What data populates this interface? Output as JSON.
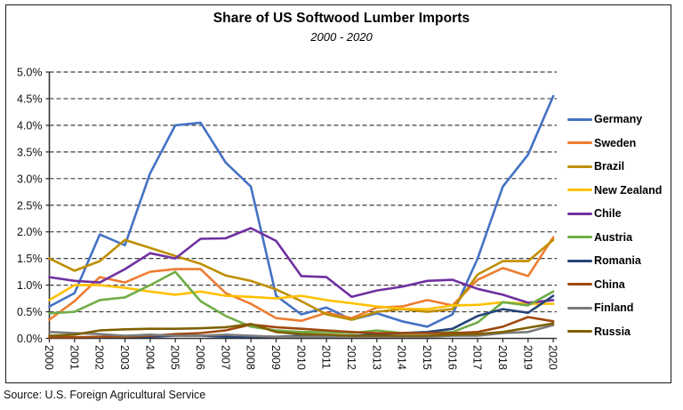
{
  "source": "Source: U.S. Foreign Agricultural Service",
  "chart_data": {
    "type": "line",
    "title": "Share of US Softwood Lumber Imports",
    "subtitle": "2000 - 2020",
    "xlabel": "",
    "ylabel": "",
    "x": [
      2000,
      2001,
      2002,
      2003,
      2004,
      2005,
      2006,
      2007,
      2008,
      2009,
      2010,
      2011,
      2012,
      2013,
      2014,
      2015,
      2016,
      2017,
      2018,
      2019,
      2020
    ],
    "ylim": [
      0,
      5
    ],
    "ytick_step": 0.5,
    "y_tick_labels": [
      "0.0%",
      "0.5%",
      "1.0%",
      "1.5%",
      "2.0%",
      "2.5%",
      "3.0%",
      "3.5%",
      "4.0%",
      "4.5%",
      "5.0%"
    ],
    "grid": "horizontal-dashed",
    "legend_position": "right",
    "series": [
      {
        "name": "Germany",
        "color": "#4472C4",
        "values": [
          0.6,
          0.85,
          1.95,
          1.75,
          3.1,
          4.0,
          4.05,
          3.3,
          2.85,
          0.8,
          0.45,
          0.58,
          0.35,
          0.47,
          0.32,
          0.22,
          0.45,
          1.5,
          2.85,
          3.45,
          4.55
        ]
      },
      {
        "name": "Sweden",
        "color": "#ED7D31",
        "values": [
          0.35,
          0.7,
          1.15,
          1.05,
          1.25,
          1.3,
          1.3,
          0.85,
          0.65,
          0.38,
          0.33,
          0.48,
          0.38,
          0.58,
          0.6,
          0.72,
          0.62,
          1.1,
          1.32,
          1.17,
          1.9
        ]
      },
      {
        "name": "Brazil",
        "color": "#BF8F00",
        "values": [
          1.5,
          1.27,
          1.45,
          1.85,
          1.7,
          1.55,
          1.4,
          1.18,
          1.08,
          0.92,
          0.7,
          0.45,
          0.35,
          0.5,
          0.55,
          0.5,
          0.55,
          1.2,
          1.45,
          1.45,
          1.85
        ]
      },
      {
        "name": "New Zealand",
        "color": "#FFC000",
        "values": [
          0.72,
          1.0,
          1.0,
          0.95,
          0.88,
          0.82,
          0.88,
          0.8,
          0.78,
          0.75,
          0.8,
          0.72,
          0.66,
          0.6,
          0.56,
          0.55,
          0.62,
          0.63,
          0.68,
          0.65,
          0.65
        ]
      },
      {
        "name": "Chile",
        "color": "#7030A0",
        "values": [
          1.15,
          1.08,
          1.05,
          1.3,
          1.6,
          1.5,
          1.87,
          1.88,
          2.07,
          1.83,
          1.17,
          1.15,
          0.78,
          0.9,
          0.97,
          1.08,
          1.1,
          0.93,
          0.82,
          0.67,
          0.72
        ]
      },
      {
        "name": "Austria",
        "color": "#70AD47",
        "values": [
          0.47,
          0.5,
          0.72,
          0.77,
          1.0,
          1.25,
          0.7,
          0.42,
          0.22,
          0.15,
          0.12,
          0.12,
          0.1,
          0.15,
          0.1,
          0.1,
          0.12,
          0.3,
          0.68,
          0.62,
          0.88
        ]
      },
      {
        "name": "Romania",
        "color": "#264478",
        "values": [
          0.02,
          0.02,
          0.02,
          0.03,
          0.03,
          0.05,
          0.05,
          0.03,
          0.03,
          0.03,
          0.05,
          0.05,
          0.05,
          0.08,
          0.1,
          0.12,
          0.18,
          0.42,
          0.55,
          0.48,
          0.8
        ]
      },
      {
        "name": "China",
        "color": "#9E480E",
        "values": [
          0.02,
          0.02,
          0.03,
          0.03,
          0.05,
          0.08,
          0.1,
          0.15,
          0.26,
          0.21,
          0.18,
          0.15,
          0.12,
          0.1,
          0.1,
          0.1,
          0.1,
          0.12,
          0.22,
          0.4,
          0.32
        ]
      },
      {
        "name": "Finland",
        "color": "#7B7B7B",
        "values": [
          0.12,
          0.1,
          0.08,
          0.05,
          0.07,
          0.05,
          0.05,
          0.07,
          0.05,
          0.03,
          0.03,
          0.03,
          0.03,
          0.03,
          0.03,
          0.03,
          0.05,
          0.05,
          0.1,
          0.12,
          0.25
        ]
      },
      {
        "name": "Russia",
        "color": "#7F6000",
        "values": [
          0.05,
          0.07,
          0.15,
          0.17,
          0.18,
          0.18,
          0.19,
          0.21,
          0.27,
          0.12,
          0.08,
          0.07,
          0.05,
          0.05,
          0.05,
          0.05,
          0.07,
          0.08,
          0.12,
          0.2,
          0.28
        ]
      }
    ]
  }
}
